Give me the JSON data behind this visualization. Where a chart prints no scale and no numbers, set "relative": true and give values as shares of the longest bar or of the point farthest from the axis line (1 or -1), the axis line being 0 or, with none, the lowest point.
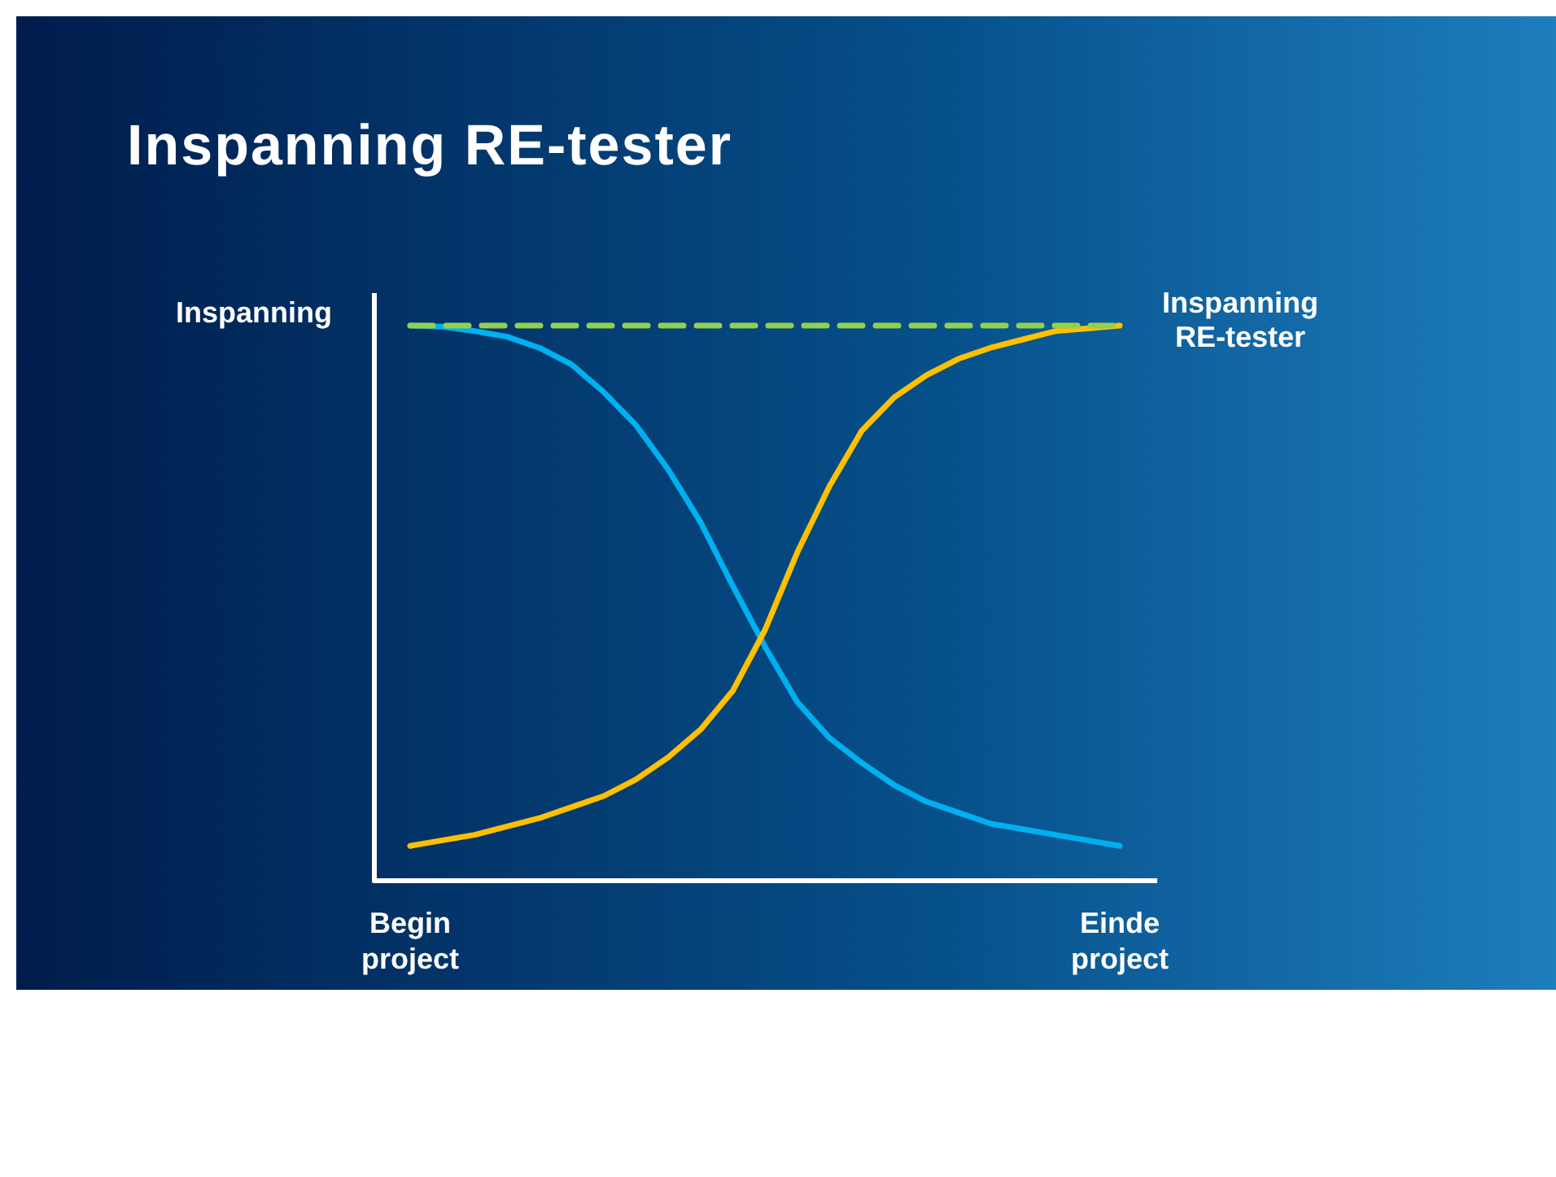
{
  "chart_data": {
    "type": "line",
    "title": "Inspanning RE-tester",
    "ylabel": "Inspanning",
    "relative": true,
    "categories": [
      "Begin project",
      null,
      null,
      null,
      null,
      null,
      null,
      null,
      null,
      null,
      null,
      null,
      null,
      null,
      null,
      null,
      null,
      null,
      null,
      null,
      null,
      null,
      "Einde project"
    ],
    "series": [
      {
        "color": "#00b0f0",
        "values": [
          1.0,
          0.998,
          0.99,
          0.98,
          0.96,
          0.93,
          0.88,
          0.82,
          0.74,
          0.645,
          0.53,
          0.42,
          0.32,
          0.255,
          0.21,
          0.17,
          0.14,
          0.12,
          0.1,
          0.09,
          0.08,
          0.07,
          0.06
        ]
      },
      {
        "color": "#ffc000",
        "values": [
          0.06,
          0.07,
          0.08,
          0.095,
          0.11,
          0.13,
          0.15,
          0.18,
          0.22,
          0.27,
          0.34,
          0.45,
          0.59,
          0.71,
          0.81,
          0.87,
          0.91,
          0.94,
          0.96,
          0.975,
          0.99,
          0.995,
          1.0
        ]
      },
      {
        "name": "Inspanning RE-tester",
        "color": "#92d050",
        "line_style": "dashed",
        "values": [
          1,
          1,
          1,
          1,
          1,
          1,
          1,
          1,
          1,
          1,
          1,
          1,
          1,
          1,
          1,
          1,
          1,
          1,
          1,
          1,
          1,
          1,
          1
        ]
      }
    ],
    "line_style": "solid",
    "marker": "none"
  }
}
